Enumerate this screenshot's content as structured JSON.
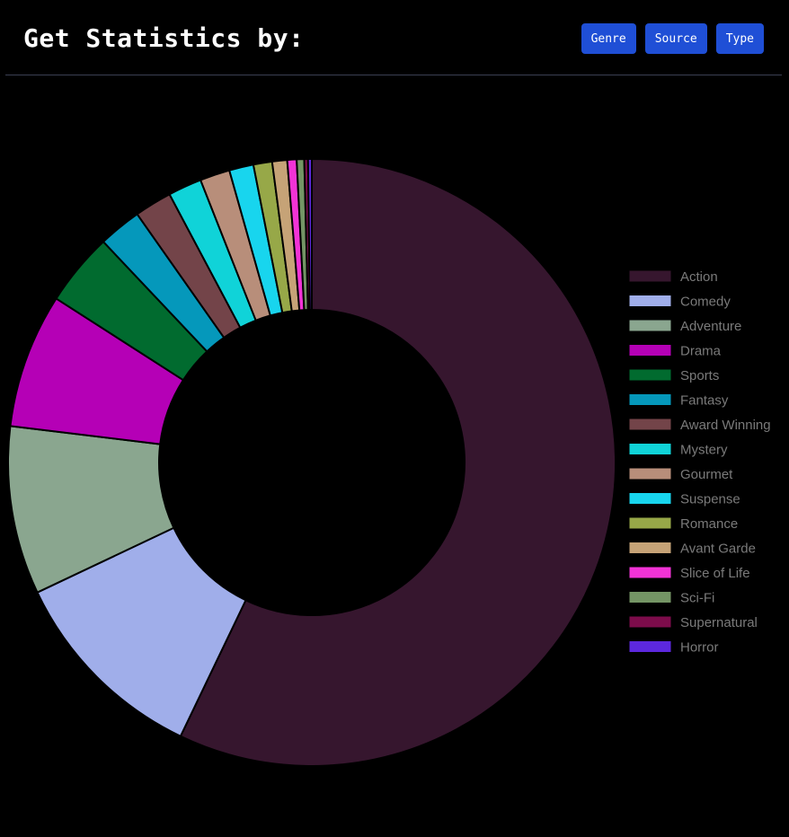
{
  "header": {
    "title": "Get Statistics by:",
    "buttons": [
      {
        "label": "Genre"
      },
      {
        "label": "Source"
      },
      {
        "label": "Type"
      }
    ]
  },
  "chart_data": {
    "type": "pie",
    "variant": "doughnut",
    "legend_position": "right",
    "categories": [
      "Action",
      "Comedy",
      "Adventure",
      "Drama",
      "Sports",
      "Fantasy",
      "Award Winning",
      "Mystery",
      "Gourmet",
      "Suspense",
      "Romance",
      "Avant Garde",
      "Slice of Life",
      "Sci-Fi",
      "Supernatural",
      "Horror"
    ],
    "values": [
      57.4,
      10.9,
      9.0,
      7.2,
      3.9,
      2.3,
      2.0,
      1.8,
      1.6,
      1.3,
      1.0,
      0.8,
      0.5,
      0.4,
      0.2,
      0.2
    ],
    "colors": [
      "#36162e",
      "#a0aeea",
      "#8aa68f",
      "#b500b6",
      "#016b2f",
      "#0598bb",
      "#734449",
      "#10d3d8",
      "#b88e7a",
      "#18d5ee",
      "#97a848",
      "#c6a377",
      "#f233d6",
      "#749565",
      "#7d0c4b",
      "#5c28de"
    ]
  }
}
